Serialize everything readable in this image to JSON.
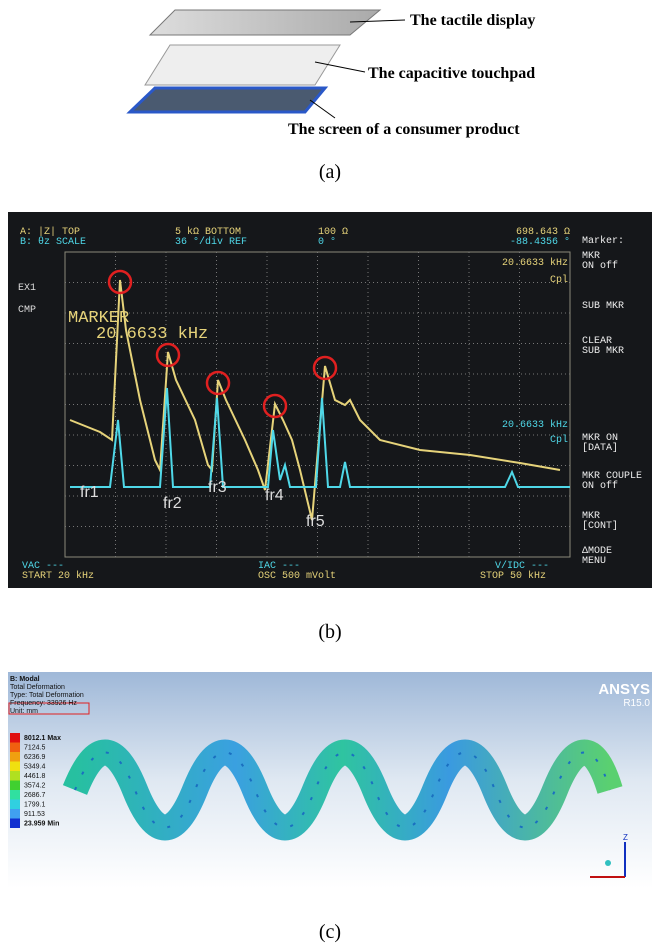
{
  "panel_a": {
    "labels": [
      "The tactile display",
      "The capacitive touchpad",
      "The screen of a consumer product"
    ],
    "caption": "(a)"
  },
  "panel_b": {
    "header": [
      "A: |Z| TOP",
      "B: θz SCALE",
      "5 kΩ BOTTOM",
      "36 °/div REF",
      "100 Ω",
      "0 °",
      "698.643 Ω",
      "-88.4356 °"
    ],
    "left_labels": [
      "EX1",
      "CMP"
    ],
    "marker_label": "MARKER",
    "marker_value": "20.6633 kHz",
    "readouts": [
      "20.6633 kHz",
      "Cpl",
      "20.6633 kHz",
      "Cpl"
    ],
    "side_menu": [
      [
        "Marker:"
      ],
      [
        "MKR",
        "ON off"
      ],
      [
        "SUB MKR"
      ],
      [
        "CLEAR",
        "SUB MKR"
      ],
      [
        "MKR ON",
        "[DATA]"
      ],
      [
        "MKR COUPLE",
        "ON off"
      ],
      [
        "MKR",
        "[CONT]"
      ],
      [
        "ΔMODE",
        "MENU"
      ]
    ],
    "peaks": [
      "fr1",
      "fr2",
      "fr3",
      "fr4",
      "fr5"
    ],
    "footer": [
      "VAC ---",
      "START 20 kHz",
      "IAC ---",
      "OSC 500 mVolt",
      "V/IDC ---",
      "STOP 50 kHz"
    ],
    "caption": "(b)"
  },
  "panel_c": {
    "title_lines": [
      "B: Modal",
      "Total Deformation",
      "Type: Total Deformation",
      "Frequency: 33926 Hz",
      "Unit: mm"
    ],
    "brand": "ANSYS",
    "version": "R15.0",
    "legend": [
      "8012.1 Max",
      "7124.5",
      "6236.9",
      "5349.4",
      "4461.8",
      "3574.2",
      "2686.7",
      "1799.1",
      "911.53",
      "23.959 Min"
    ],
    "axis_label": "Z",
    "caption": "(c)"
  }
}
